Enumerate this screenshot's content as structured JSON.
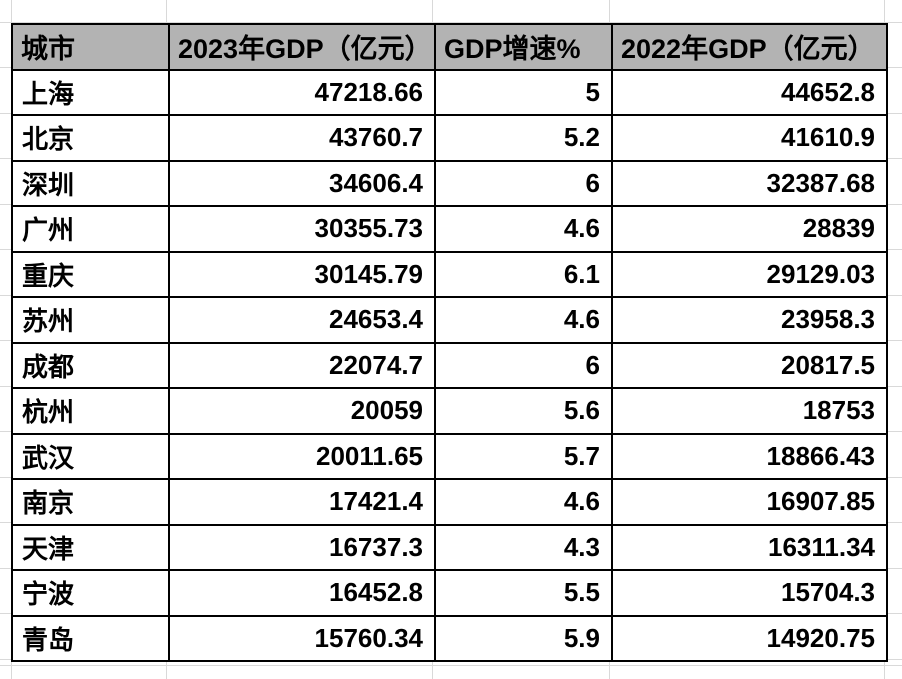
{
  "table": {
    "headers": [
      {
        "label": "城市"
      },
      {
        "label": "2023年GDP（亿元）"
      },
      {
        "label": "GDP增速%"
      },
      {
        "label": "2022年GDP（亿元）"
      }
    ],
    "rows": [
      {
        "city": "上海",
        "gdp2023": "47218.66",
        "growth": "5",
        "gdp2022": "44652.8"
      },
      {
        "city": "北京",
        "gdp2023": "43760.7",
        "growth": "5.2",
        "gdp2022": "41610.9"
      },
      {
        "city": "深圳",
        "gdp2023": "34606.4",
        "growth": "6",
        "gdp2022": "32387.68"
      },
      {
        "city": "广州",
        "gdp2023": "30355.73",
        "growth": "4.6",
        "gdp2022": "28839"
      },
      {
        "city": "重庆",
        "gdp2023": "30145.79",
        "growth": "6.1",
        "gdp2022": "29129.03"
      },
      {
        "city": "苏州",
        "gdp2023": "24653.4",
        "growth": "4.6",
        "gdp2022": "23958.3"
      },
      {
        "city": "成都",
        "gdp2023": "22074.7",
        "growth": "6",
        "gdp2022": "20817.5"
      },
      {
        "city": "杭州",
        "gdp2023": "20059",
        "growth": "5.6",
        "gdp2022": "18753"
      },
      {
        "city": "武汉",
        "gdp2023": "20011.65",
        "growth": "5.7",
        "gdp2022": "18866.43"
      },
      {
        "city": "南京",
        "gdp2023": "17421.4",
        "growth": "4.6",
        "gdp2022": "16907.85"
      },
      {
        "city": "天津",
        "gdp2023": "16737.3",
        "growth": "4.3",
        "gdp2022": "16311.34"
      },
      {
        "city": "宁波",
        "gdp2023": "16452.8",
        "growth": "5.5",
        "gdp2022": "15704.3"
      },
      {
        "city": "青岛",
        "gdp2023": "15760.34",
        "growth": "5.9",
        "gdp2022": "14920.75"
      }
    ]
  },
  "colors": {
    "header_bg": "#b3b3b3",
    "border": "#000000",
    "gridline": "#d9d9d9",
    "page_bg": "#ffffff"
  }
}
